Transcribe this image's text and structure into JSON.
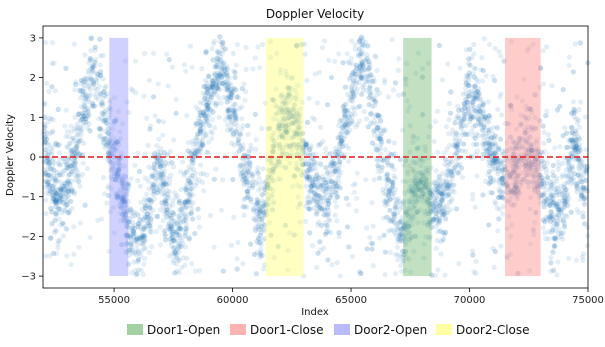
{
  "chart_data": {
    "type": "scatter",
    "title": "Doppler Velocity",
    "xlabel": "Index",
    "ylabel": "Doppler Velocity",
    "xlim": [
      52000,
      75000
    ],
    "ylim": [
      -3.3,
      3.3
    ],
    "xticks": [
      55000,
      60000,
      65000,
      70000,
      75000
    ],
    "xtick_labels": [
      "55000",
      "60000",
      "65000",
      "70000",
      "75000"
    ],
    "yticks": [
      -3,
      -2,
      -1,
      0,
      1,
      2,
      3
    ],
    "ytick_labels": [
      "−3",
      "−2",
      "−1",
      "0",
      "1",
      "2",
      "3"
    ],
    "grid": false,
    "point_color": "#1f77b4",
    "point_alpha": 0.12,
    "reference_line": {
      "y": 0,
      "color": "#e41a1c",
      "style": "dashed"
    },
    "trend": {
      "x": [
        52000,
        52600,
        53000,
        53600,
        54000,
        54400,
        54800,
        55200,
        55600,
        56000,
        56400,
        56800,
        57200,
        57600,
        58000,
        58400,
        58800,
        59200,
        59600,
        60000,
        60400,
        60800,
        61200,
        61600,
        62000,
        62400,
        62800,
        63200,
        63600,
        64000,
        64400,
        64800,
        65200,
        65600,
        66000,
        66400,
        66800,
        67200,
        67600,
        68000,
        68400,
        68800,
        69200,
        69600,
        70000,
        70400,
        70800,
        71200,
        71600,
        72000,
        72400,
        72800,
        73200,
        73600,
        74000,
        74400,
        74800,
        75000
      ],
      "y": [
        0.2,
        -1.0,
        -0.8,
        0.8,
        2.0,
        1.7,
        0.3,
        -0.4,
        -1.8,
        -2.2,
        -1.6,
        -0.2,
        -1.0,
        -2.2,
        -1.5,
        0.0,
        1.0,
        2.0,
        2.3,
        1.2,
        0.0,
        -0.8,
        -1.8,
        -0.4,
        0.8,
        1.0,
        0.6,
        -0.4,
        -1.0,
        -1.1,
        -0.4,
        1.0,
        2.0,
        2.4,
        1.0,
        -0.2,
        -1.2,
        -2.0,
        -1.0,
        -0.6,
        -1.1,
        -1.3,
        -0.6,
        0.6,
        1.6,
        1.2,
        0.4,
        -0.3,
        -0.5,
        -0.3,
        0.2,
        -0.2,
        -1.0,
        -1.5,
        -1.0,
        0.4,
        -0.8,
        -0.6
      ],
      "noise": 0.45,
      "points_per_unit": 0.22
    },
    "bands": [
      {
        "name": "Door2-Open",
        "x0": 54800,
        "x1": 55600,
        "y0": -3.0,
        "y1": 3.0,
        "color": "#8c8cff"
      },
      {
        "name": "Door2-Close",
        "x0": 61400,
        "x1": 63000,
        "y0": -3.0,
        "y1": 3.0,
        "color": "#ffff66"
      },
      {
        "name": "Door1-Open",
        "x0": 67200,
        "x1": 68400,
        "y0": -3.0,
        "y1": 3.0,
        "color": "#66b266"
      },
      {
        "name": "Door1-Close",
        "x0": 71500,
        "x1": 73000,
        "y0": -3.0,
        "y1": 3.0,
        "color": "#ff7f7f"
      }
    ],
    "legend": {
      "placement": "bottom",
      "entries": [
        {
          "label": "Door1-Open",
          "color": "#66b266"
        },
        {
          "label": "Door1-Close",
          "color": "#ff7f7f"
        },
        {
          "label": "Door2-Open",
          "color": "#8c8cff"
        },
        {
          "label": "Door2-Close",
          "color": "#ffff66"
        }
      ]
    }
  }
}
